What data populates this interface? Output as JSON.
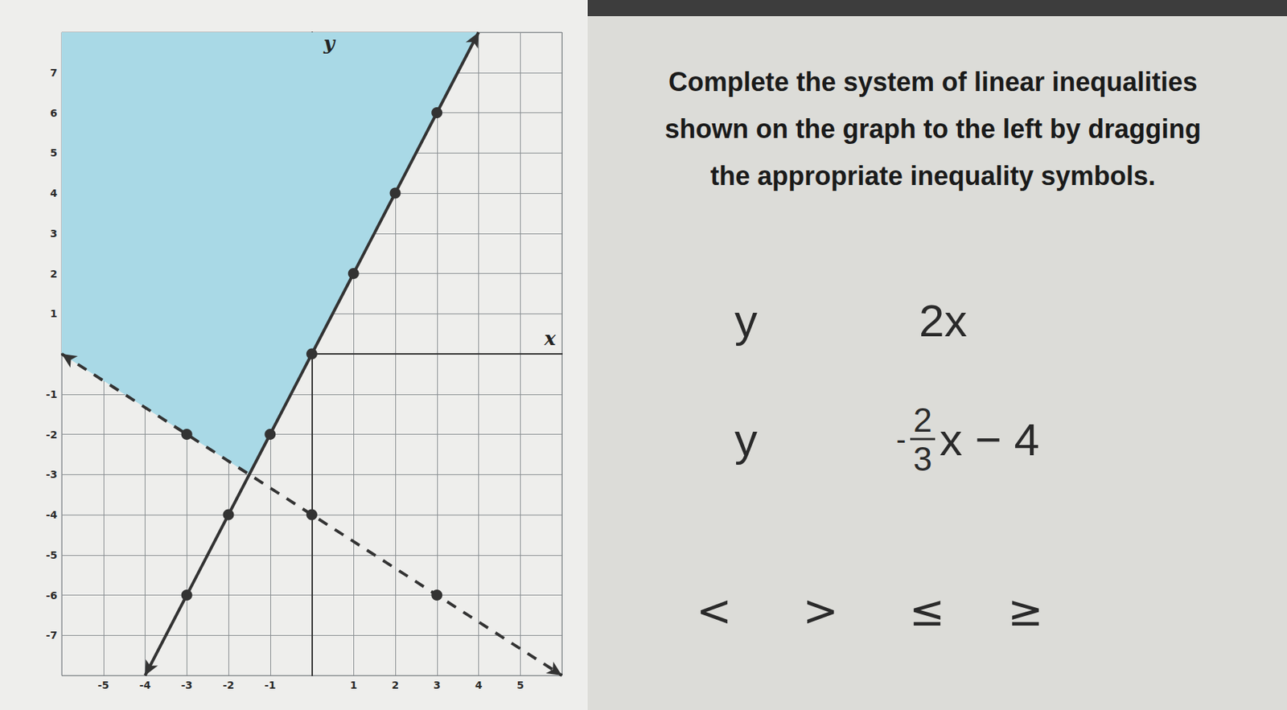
{
  "chart_data": {
    "type": "line",
    "xlim": [
      -6,
      6
    ],
    "ylim": [
      -8,
      8
    ],
    "xticks": [
      -5,
      -4,
      -3,
      -2,
      -1,
      1,
      2,
      3,
      4,
      5
    ],
    "yticks": [
      -7,
      -6,
      -5,
      -4,
      -3,
      -2,
      -1,
      1,
      2,
      3,
      4,
      5,
      6,
      7
    ],
    "grid": true,
    "xlabel": "x",
    "ylabel": "y",
    "series": [
      {
        "type": "area",
        "color": "#a9d9e6",
        "x": [
          -6,
          -1.5,
          4
        ],
        "values": [
          0,
          -3,
          8
        ]
      },
      {
        "type": "line",
        "line_style": "solid",
        "marker": "circle",
        "color": "#333333",
        "x": [
          -4,
          -3,
          -2,
          -1,
          0,
          1,
          2,
          3,
          4
        ],
        "values": [
          -8,
          -6,
          -4,
          -2,
          0,
          2,
          4,
          6,
          8
        ]
      },
      {
        "type": "line",
        "line_style": "dashed",
        "marker": "circle",
        "color": "#333333",
        "x": [
          -6,
          -3,
          0,
          3,
          6
        ],
        "values": [
          0,
          -2,
          -4,
          -6,
          -8
        ]
      }
    ]
  },
  "instructions": [
    "Complete the system of linear inequalities",
    "shown on the graph to the left by dragging",
    "the appropriate inequality symbols."
  ],
  "inequalities": [
    {
      "left": "y",
      "right": "2x"
    },
    {
      "left": "y",
      "right_sign": "-",
      "numerator": "2",
      "denominator": "3",
      "right_rest": "x − 4"
    }
  ],
  "symbols": [
    "<",
    ">",
    "≤",
    "≥"
  ]
}
